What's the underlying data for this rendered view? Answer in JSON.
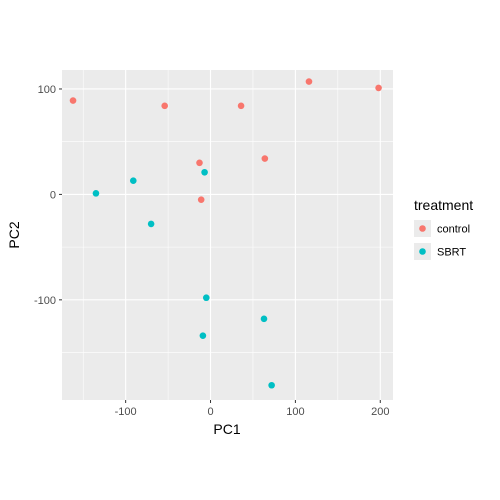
{
  "chart_data": {
    "type": "scatter",
    "xlabel": "PC1",
    "ylabel": "PC2",
    "xlim": [
      -175,
      215
    ],
    "ylim": [
      -195,
      118
    ],
    "x_ticks": [
      {
        "value": -100,
        "label": "-100"
      },
      {
        "value": 0,
        "label": "0"
      },
      {
        "value": 100,
        "label": "100"
      },
      {
        "value": 200,
        "label": "200"
      }
    ],
    "y_ticks": [
      {
        "value": 100,
        "label": "100"
      },
      {
        "value": 0,
        "label": "0"
      },
      {
        "value": -100,
        "label": "-100"
      }
    ],
    "grid": true,
    "panel_background": "#ebebeb",
    "legend": {
      "title": "treatment",
      "position": "right"
    },
    "series": [
      {
        "name": "control",
        "color": "#F8766D",
        "points": [
          {
            "x": -162,
            "y": 89
          },
          {
            "x": -54,
            "y": 84
          },
          {
            "x": 36,
            "y": 84
          },
          {
            "x": 116,
            "y": 107
          },
          {
            "x": 198,
            "y": 101
          },
          {
            "x": -13,
            "y": 30
          },
          {
            "x": 64,
            "y": 34
          },
          {
            "x": -11,
            "y": -5
          }
        ]
      },
      {
        "name": "SBRT",
        "color": "#00BFC4",
        "points": [
          {
            "x": -135,
            "y": 1
          },
          {
            "x": -91,
            "y": 13
          },
          {
            "x": -7,
            "y": 21
          },
          {
            "x": -70,
            "y": -28
          },
          {
            "x": -5,
            "y": -98
          },
          {
            "x": 63,
            "y": -118
          },
          {
            "x": -9,
            "y": -134
          },
          {
            "x": 72,
            "y": -181
          }
        ]
      }
    ]
  }
}
